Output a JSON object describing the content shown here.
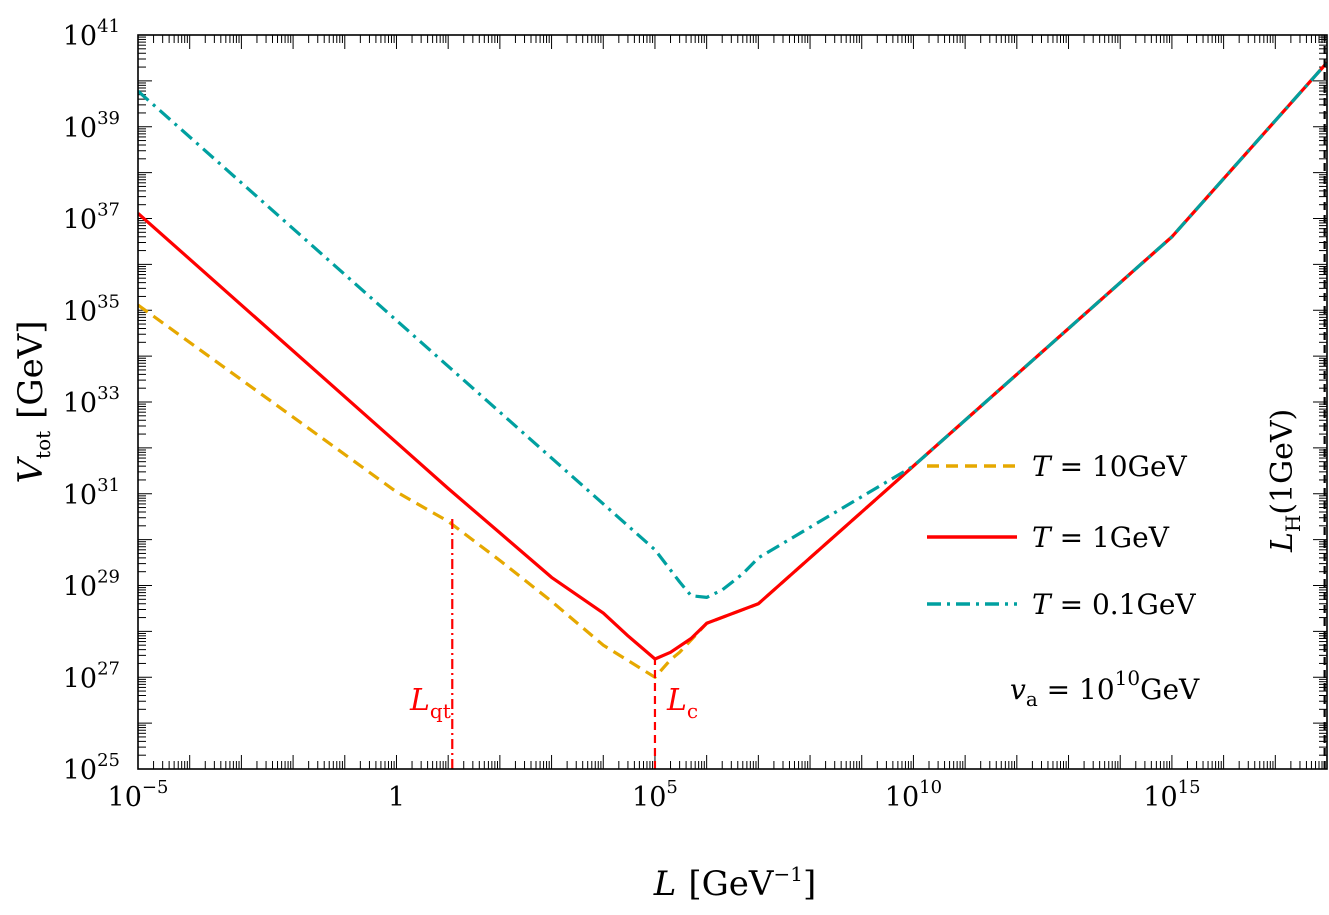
{
  "chart_data": {
    "type": "line",
    "xscale": "log",
    "yscale": "log",
    "xlim": [
      1e-05,
      1e+18
    ],
    "ylim": [
      1e+25,
      1e+41
    ],
    "xlabel": {
      "main": "L",
      "unit_open": "[GeV",
      "unit_sup": "−1",
      "unit_close": "]"
    },
    "ylabel": {
      "main": "V",
      "sub": "tot",
      "unit": "[GeV]"
    },
    "x_ticks": [
      {
        "value": 1e-05,
        "base": "10",
        "exp": "−5"
      },
      {
        "value": 1,
        "base": "1",
        "exp": ""
      },
      {
        "value": 100000.0,
        "base": "10",
        "exp": "5"
      },
      {
        "value": 10000000000.0,
        "base": "10",
        "exp": "10"
      },
      {
        "value": 1000000000000000.0,
        "base": "10",
        "exp": "15"
      }
    ],
    "y_ticks": [
      {
        "value": 1e+25,
        "base": "10",
        "exp": "25"
      },
      {
        "value": 1e+27,
        "base": "10",
        "exp": "27"
      },
      {
        "value": 1e+29,
        "base": "10",
        "exp": "29"
      },
      {
        "value": 1e+31,
        "base": "10",
        "exp": "31"
      },
      {
        "value": 1e+33,
        "base": "10",
        "exp": "33"
      },
      {
        "value": 1e+35,
        "base": "10",
        "exp": "35"
      },
      {
        "value": 1e+37,
        "base": "10",
        "exp": "37"
      },
      {
        "value": 1e+39,
        "base": "10",
        "exp": "39"
      },
      {
        "value": 1e+41,
        "base": "10",
        "exp": "41"
      }
    ],
    "series": [
      {
        "name": "T = 10GeV",
        "color": "#E6A800",
        "style": "dashed",
        "points": [
          [
            1e-05,
            1.3e+35
          ],
          [
            1,
            1.1e+31
          ],
          [
            10,
            2.5e+30
          ],
          [
            100,
            3.5e+29
          ],
          [
            1000,
            4.5e+28
          ],
          [
            10000.0,
            5e+27
          ],
          [
            100000.0,
            1e+27
          ],
          [
            200000.0,
            2.4e+27
          ],
          [
            300000.0,
            3.5e+27
          ],
          [
            1000000.0,
            1.5e+28
          ],
          [
            10000000.0,
            4e+28
          ],
          [
            10000000000.0,
            4e+31
          ],
          [
            1000000000000000.0,
            4e+36
          ],
          [
            1e+18,
            2.5e+40
          ]
        ]
      },
      {
        "name": "T = 1GeV",
        "color": "#FF0000",
        "style": "solid",
        "points": [
          [
            1e-05,
            1.3e+37
          ],
          [
            1,
            1.3e+32
          ],
          [
            10,
            1.3e+31
          ],
          [
            100,
            1.4e+30
          ],
          [
            1000,
            1.5e+29
          ],
          [
            10000.0,
            2.5e+28
          ],
          [
            30000.0,
            8e+27
          ],
          [
            100000.0,
            2.5e+27
          ],
          [
            200000.0,
            3.5e+27
          ],
          [
            500000.0,
            7e+27
          ],
          [
            1000000.0,
            1.5e+28
          ],
          [
            10000000.0,
            4e+28
          ],
          [
            10000000000.0,
            4e+31
          ],
          [
            1000000000000000.0,
            4e+36
          ],
          [
            1e+18,
            2.5e+40
          ]
        ]
      },
      {
        "name": "T = 0.1GeV",
        "color": "#00A0A0",
        "style": "dashdot",
        "points": [
          [
            1e-05,
            6e+39
          ],
          [
            1,
            6e+34
          ],
          [
            10,
            6e+33
          ],
          [
            100,
            6e+32
          ],
          [
            1000,
            6e+31
          ],
          [
            10000.0,
            6e+30
          ],
          [
            100000.0,
            6e+29
          ],
          [
            300000.0,
            1.2e+29
          ],
          [
            500000.0,
            6e+28
          ],
          [
            1000000.0,
            5.5e+28
          ],
          [
            2000000.0,
            8e+28
          ],
          [
            5000000.0,
            1.8e+29
          ],
          [
            10000000.0,
            4e+29
          ],
          [
            10000000000.0,
            4e+31
          ],
          [
            1000000000000000.0,
            4e+36
          ],
          [
            1e+18,
            2.5e+40
          ]
        ]
      }
    ],
    "vlines": [
      {
        "label_main": "L",
        "label_sub": "qt",
        "x": 12,
        "y_top": 3e+30,
        "color": "#FF0000",
        "style": "dashdot"
      },
      {
        "label_main": "L",
        "label_sub": "c",
        "x": 100000.0,
        "y_top": 2.5e+27,
        "color": "#FF0000",
        "style": "dashed"
      },
      {
        "label_main": "L",
        "label_sub": "H",
        "label_rest": "(1GeV)",
        "x": 9e+17,
        "y_top": 1e+41,
        "color": "#000000",
        "style": "dashed"
      }
    ],
    "annotation": {
      "lhs": "v",
      "lhs_sub": "a",
      "eq": " = 10",
      "exp": "10",
      "unit": "GeV"
    },
    "legend": {
      "position": "center-right",
      "entries": [
        {
          "lhs": "T",
          "rhs": " = 10GeV",
          "color": "#E6A800",
          "style": "dashed"
        },
        {
          "lhs": "T",
          "rhs": " = 1GeV",
          "color": "#FF0000",
          "style": "solid"
        },
        {
          "lhs": "T",
          "rhs": " = 0.1GeV",
          "color": "#00A0A0",
          "style": "dashdot"
        }
      ]
    },
    "grid": false
  }
}
